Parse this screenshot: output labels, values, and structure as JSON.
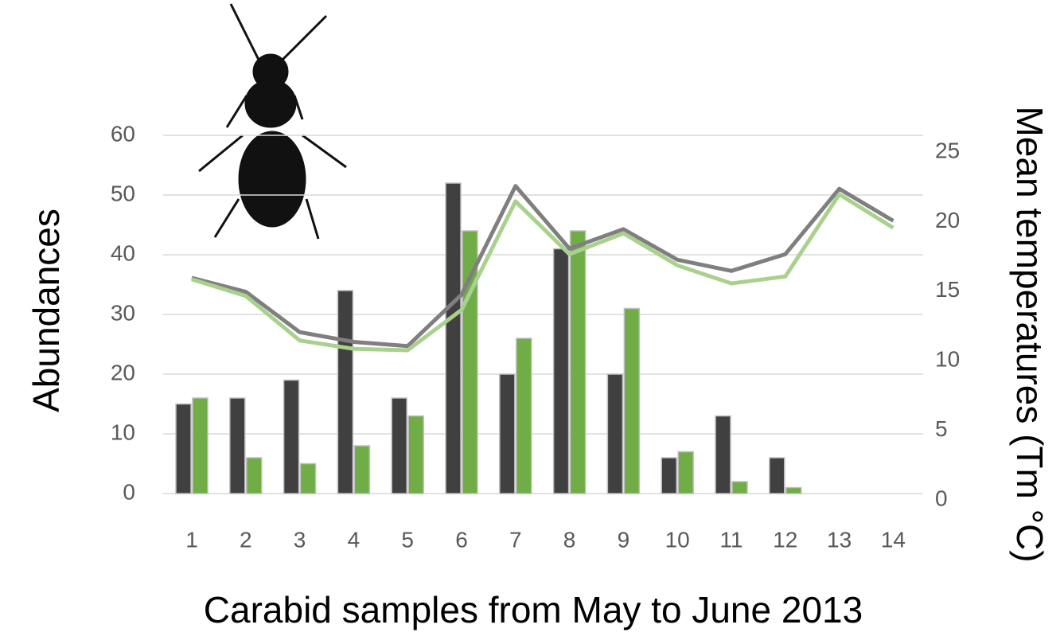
{
  "chart_data": {
    "type": "bar",
    "x_label": "Carabid samples from May to June 2013",
    "y_label": "Abundances",
    "y2_label": "Mean temperatures (Tm °C)",
    "categories": [
      "1",
      "2",
      "3",
      "4",
      "5",
      "6",
      "7",
      "8",
      "9",
      "10",
      "11",
      "12",
      "13",
      "14"
    ],
    "series": [
      {
        "color": "#404040",
        "values": [
          15,
          16,
          19,
          34,
          16,
          52,
          20,
          41,
          20,
          6,
          13,
          6,
          null,
          null
        ]
      },
      {
        "color": "#70ad47",
        "values": [
          16,
          6,
          5,
          8,
          13,
          44,
          26,
          44,
          31,
          7,
          2,
          1,
          null,
          null
        ]
      },
      {
        "type": "line",
        "axis": "y2",
        "color": "#7f7f7f",
        "values": [
          15.5,
          14.5,
          11.6,
          10.9,
          10.6,
          14.3,
          22.1,
          17.6,
          19.0,
          16.8,
          16.0,
          17.2,
          21.9,
          19.6
        ]
      },
      {
        "type": "line",
        "axis": "y2",
        "color": "#a9d18e",
        "values": [
          15.4,
          14.2,
          11.0,
          10.4,
          10.3,
          13.2,
          21.0,
          17.2,
          18.7,
          16.4,
          15.1,
          15.6,
          21.5,
          19.1
        ]
      }
    ],
    "ylim": [
      0,
      60
    ],
    "yticks": [
      0,
      10,
      20,
      30,
      40,
      50,
      60
    ],
    "y2lim": [
      0,
      25
    ],
    "y2ticks": [
      0,
      5,
      10,
      15,
      20,
      25
    ],
    "grid": true
  }
}
